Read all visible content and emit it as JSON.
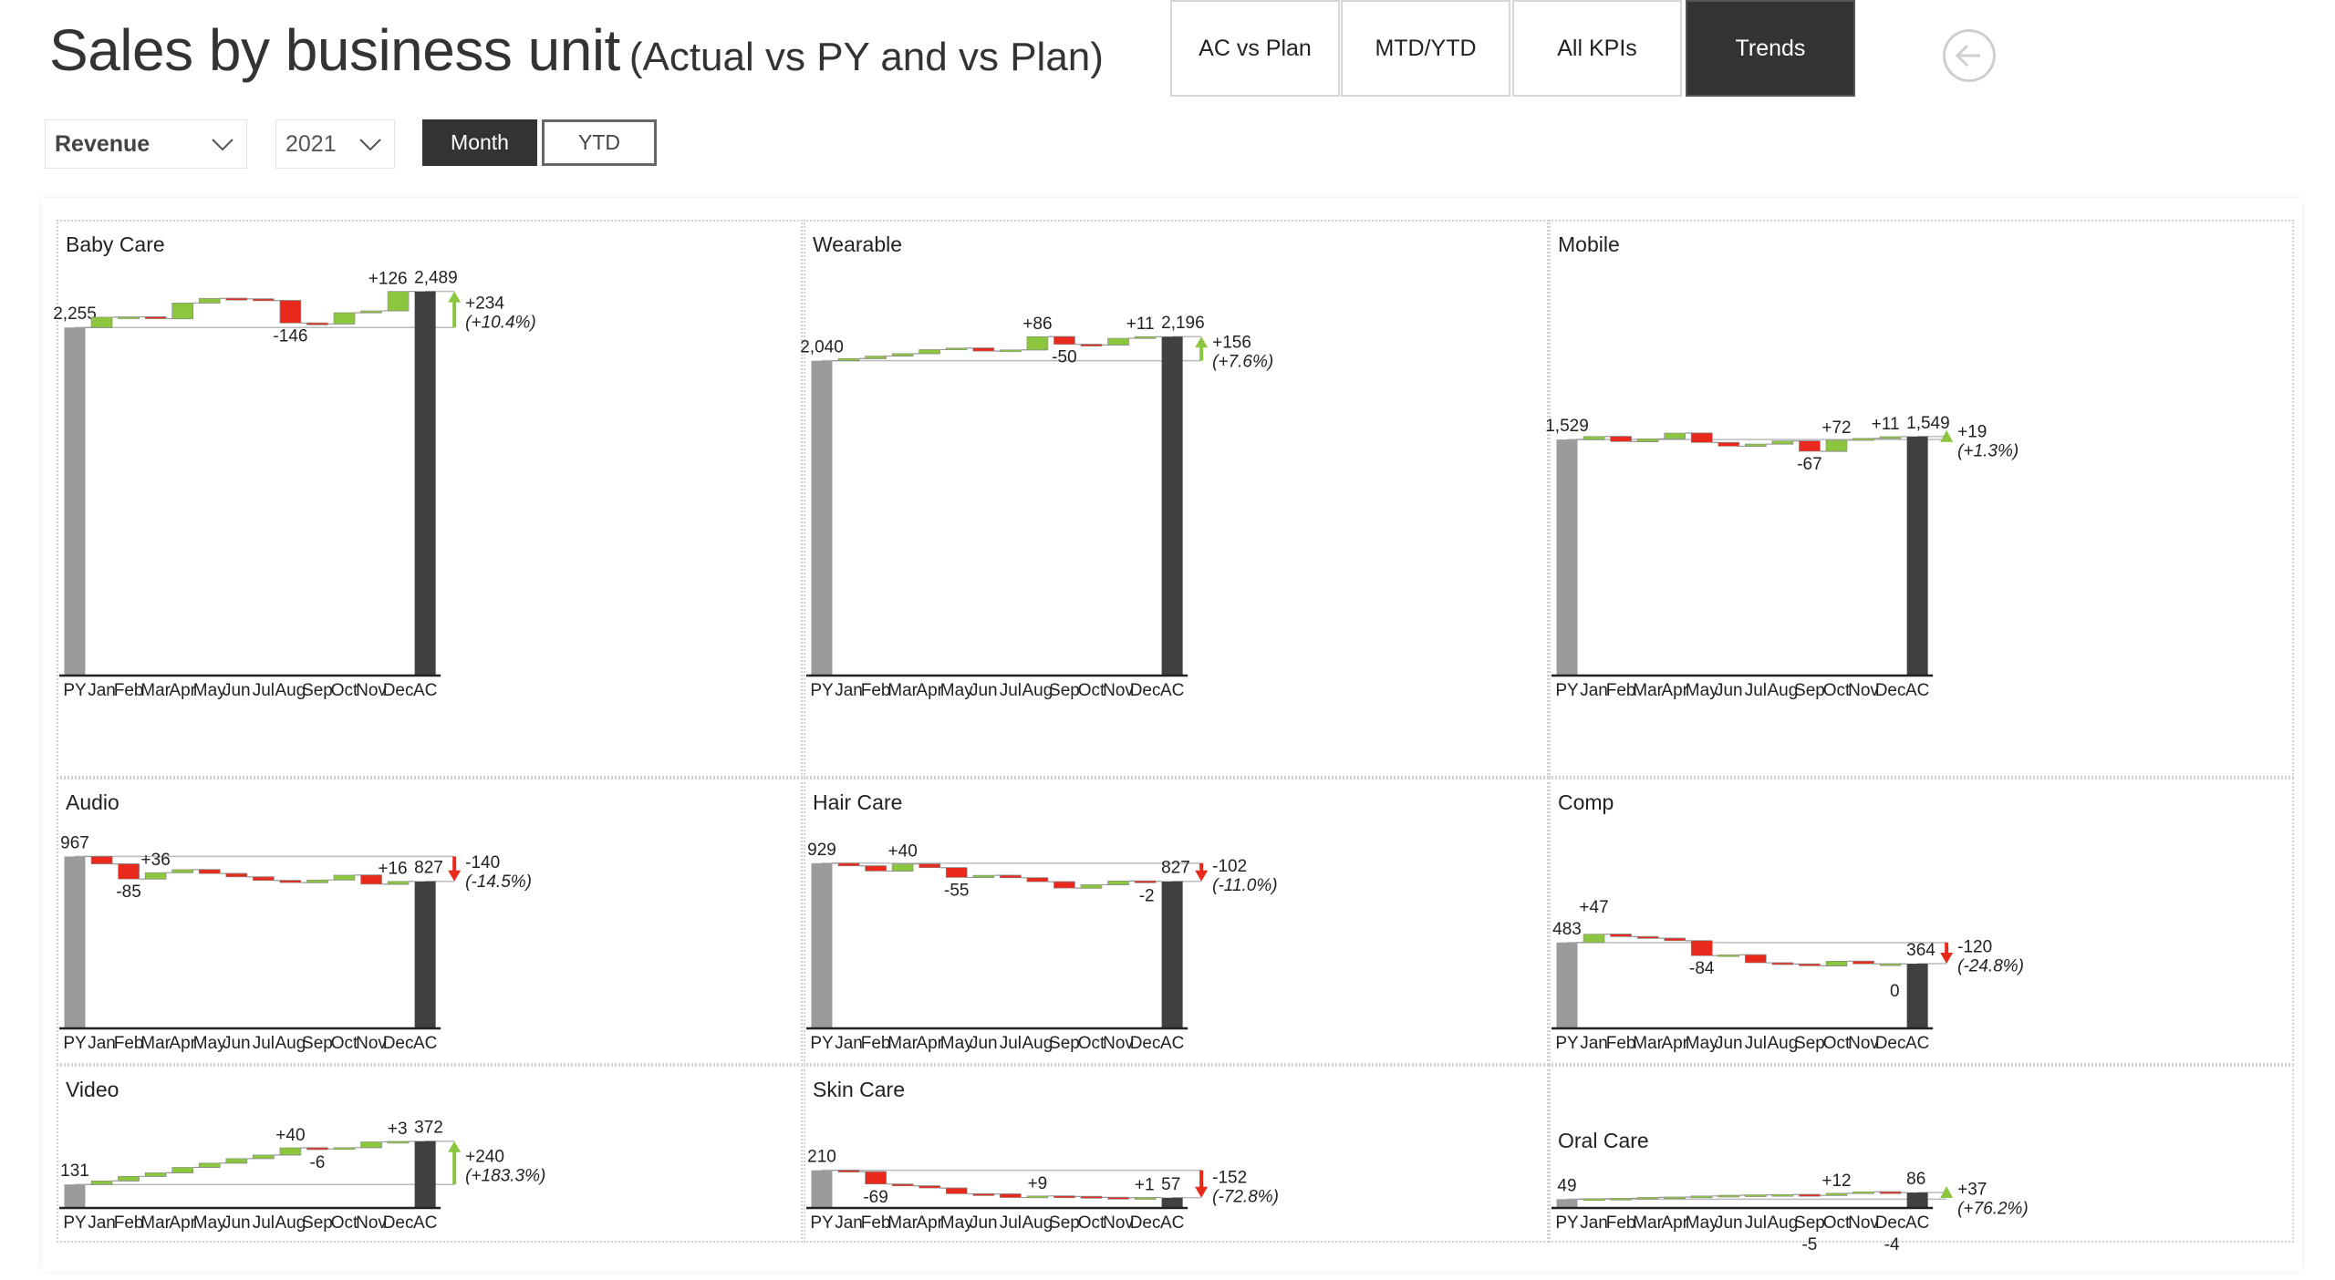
{
  "header": {
    "title": "Sales by business unit",
    "subtitle": "(Actual vs PY and vs Plan)"
  },
  "nav": [
    {
      "label": "AC vs Plan",
      "active": false
    },
    {
      "label": "MTD/YTD",
      "active": false
    },
    {
      "label": "All KPIs",
      "active": false
    },
    {
      "label": "Trends",
      "active": true
    }
  ],
  "back_icon": "arrow-left-circle-icon",
  "filters": {
    "measure": "Revenue",
    "year": "2021",
    "period_toggle": [
      {
        "label": "Month",
        "active": true
      },
      {
        "label": "YTD",
        "active": false
      }
    ]
  },
  "colors": {
    "positive": "#8cc63f",
    "negative": "#e8291c",
    "py": "#9b9b9b",
    "ac": "#404040"
  },
  "chart_data": [
    {
      "type": "waterfall",
      "title": "Baby Care",
      "categories": [
        "PY",
        "Jan",
        "Feb",
        "Mar",
        "Apr",
        "May",
        "Jun",
        "Jul",
        "Aug",
        "Sep",
        "Oct",
        "Nov",
        "Dec",
        "AC"
      ],
      "py": 2255,
      "ac": 2489,
      "deltas": [
        67,
        2,
        -12,
        102,
        30,
        -4,
        -10,
        -146,
        -6,
        73,
        12,
        126
      ],
      "labeled_months": [
        "Aug",
        "Dec"
      ],
      "variance": "+234",
      "variance_pct": "(+10.4%)"
    },
    {
      "type": "waterfall",
      "title": "Wearable",
      "categories": [
        "PY",
        "Jan",
        "Feb",
        "Mar",
        "Apr",
        "May",
        "Jun",
        "Jul",
        "Aug",
        "Sep",
        "Oct",
        "Nov",
        "Dec",
        "AC"
      ],
      "py": 2040,
      "ac": 2196,
      "deltas": [
        14,
        16,
        16,
        26,
        10,
        -20,
        8,
        86,
        -50,
        -4,
        43,
        11
      ],
      "labeled_months": [
        "Aug",
        "Sep",
        "Dec"
      ],
      "variance": "+156",
      "variance_pct": "(+7.6%)"
    },
    {
      "type": "waterfall",
      "title": "Mobile",
      "categories": [
        "PY",
        "Jan",
        "Feb",
        "Mar",
        "Apr",
        "May",
        "Jun",
        "Jul",
        "Aug",
        "Sep",
        "Oct",
        "Nov",
        "Dec",
        "AC"
      ],
      "py": 1529,
      "ac": 1549,
      "deltas": [
        20,
        -33,
        18,
        37,
        -61,
        -24,
        14,
        20,
        -67,
        72,
        12,
        11
      ],
      "labeled_months": [
        "Sep",
        "Oct",
        "Dec"
      ],
      "variance": "+19",
      "variance_pct": "(+1.3%)"
    },
    {
      "type": "waterfall",
      "title": "Audio",
      "categories": [
        "PY",
        "Jan",
        "Feb",
        "Mar",
        "Apr",
        "May",
        "Jun",
        "Jul",
        "Aug",
        "Sep",
        "Oct",
        "Nov",
        "Dec",
        "AC"
      ],
      "py": 967,
      "ac": 827,
      "deltas": [
        -42,
        -85,
        36,
        17,
        -22,
        -19,
        -20,
        -12,
        15,
        27,
        -51,
        16
      ],
      "labeled_months": [
        "Feb",
        "Mar",
        "Dec"
      ],
      "variance": "-140",
      "variance_pct": "(-14.5%)"
    },
    {
      "type": "waterfall",
      "title": "Hair Care",
      "categories": [
        "PY",
        "Jan",
        "Feb",
        "Mar",
        "Apr",
        "May",
        "Jun",
        "Jul",
        "Aug",
        "Sep",
        "Oct",
        "Nov",
        "Dec",
        "AC"
      ],
      "py": 929,
      "ac": 827,
      "deltas": [
        -15,
        -29,
        40,
        -21,
        -55,
        12,
        -14,
        -22,
        -36,
        19,
        21,
        -2
      ],
      "labeled_months": [
        "Mar",
        "May",
        "Dec"
      ],
      "variance": "-102",
      "variance_pct": "(-11.0%)"
    },
    {
      "type": "waterfall",
      "title": "Comp",
      "categories": [
        "PY",
        "Jan",
        "Feb",
        "Mar",
        "Apr",
        "May",
        "Jun",
        "Jul",
        "Aug",
        "Sep",
        "Oct",
        "Nov",
        "Dec",
        "AC"
      ],
      "py": 483,
      "ac": 364,
      "deltas": [
        47,
        -14,
        -9,
        -14,
        -84,
        5,
        -45,
        -7,
        -10,
        26,
        -15,
        0
      ],
      "labeled_months": [
        "Jan",
        "May",
        "Dec"
      ],
      "variance": "-120",
      "variance_pct": "(-24.8%)"
    },
    {
      "type": "waterfall",
      "title": "Video",
      "categories": [
        "PY",
        "Jan",
        "Feb",
        "Mar",
        "Apr",
        "May",
        "Jun",
        "Jul",
        "Aug",
        "Sep",
        "Oct",
        "Nov",
        "Dec",
        "AC"
      ],
      "py": 131,
      "ac": 372,
      "deltas": [
        20,
        25,
        20,
        30,
        24,
        25,
        20,
        40,
        -6,
        7,
        32,
        3
      ],
      "labeled_months": [
        "Aug",
        "Sep",
        "Dec"
      ],
      "variance": "+240",
      "variance_pct": "(+183.3%)"
    },
    {
      "type": "waterfall",
      "title": "Skin Care",
      "categories": [
        "PY",
        "Jan",
        "Feb",
        "Mar",
        "Apr",
        "May",
        "Jun",
        "Jul",
        "Aug",
        "Sep",
        "Oct",
        "Nov",
        "Dec",
        "AC"
      ],
      "py": 210,
      "ac": 57,
      "deltas": [
        -8,
        -69,
        -10,
        -12,
        -32,
        -1,
        -20,
        9,
        -3,
        -5,
        -2,
        1
      ],
      "labeled_months": [
        "Feb",
        "Aug",
        "Dec"
      ],
      "variance": "-152",
      "variance_pct": "(-72.8%)"
    },
    {
      "type": "waterfall",
      "title": "Oral Care",
      "categories": [
        "PY",
        "Jan",
        "Feb",
        "Mar",
        "Apr",
        "May",
        "Jun",
        "Jul",
        "Aug",
        "Sep",
        "Oct",
        "Nov",
        "Dec",
        "AC"
      ],
      "py": 49,
      "ac": 86,
      "deltas": [
        3,
        2,
        5,
        2,
        6,
        4,
        2,
        2,
        -5,
        12,
        8,
        -4
      ],
      "labeled_months": [
        "Sep",
        "Oct",
        "Dec"
      ],
      "variance": "+37",
      "variance_pct": "(+76.2%)"
    }
  ]
}
